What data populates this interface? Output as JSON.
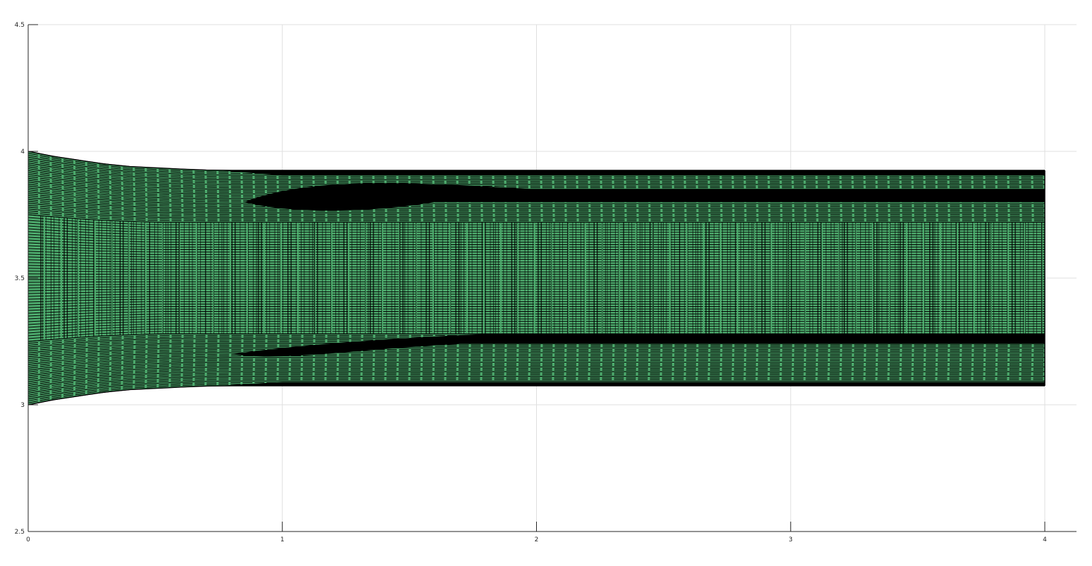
{
  "chart_data": {
    "type": "area",
    "title": "",
    "xlabel": "",
    "ylabel": "",
    "xlim": [
      0,
      4.12
    ],
    "ylim": [
      2.5,
      4.5
    ],
    "x_ticks": [
      0,
      1,
      2,
      3,
      4
    ],
    "y_ticks": [
      2.5,
      3,
      3.5,
      4,
      4.5
    ],
    "x_tick_labels": [
      "0",
      "1",
      "2",
      "3",
      "4"
    ],
    "y_tick_labels": [
      "2.5",
      "3",
      "3.5",
      "4",
      "4.5"
    ],
    "grid": true,
    "legend": "none",
    "x_end": 4.0,
    "series": [
      {
        "role": "inner-band",
        "x": [
          0,
          0.25,
          0.5,
          0.75,
          1,
          4
        ],
        "upper": [
          3.75,
          3.73,
          3.72,
          3.72,
          3.72,
          3.72
        ],
        "lower": [
          3.25,
          3.27,
          3.28,
          3.28,
          3.28,
          3.28
        ]
      },
      {
        "role": "outer-envelope",
        "x": [
          0,
          0.1,
          0.2,
          0.3,
          0.4,
          0.5,
          0.6,
          0.7,
          0.8,
          4
        ],
        "upper": [
          4.0,
          3.98,
          3.965,
          3.95,
          3.94,
          3.935,
          3.93,
          3.926,
          3.925,
          3.925
        ],
        "lower": [
          3.0,
          3.02,
          3.035,
          3.05,
          3.06,
          3.065,
          3.07,
          3.074,
          3.075,
          3.075
        ]
      }
    ],
    "colors": {
      "line": "#000000",
      "fill": "#4dab6d",
      "grid": "#dfdfdf",
      "axis": "#262626"
    }
  }
}
